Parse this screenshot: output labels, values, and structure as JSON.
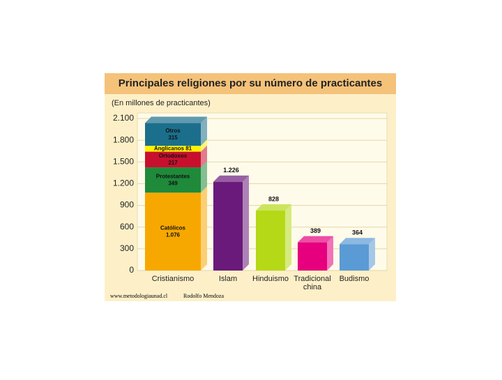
{
  "chart_data": {
    "type": "stacked-bar",
    "title": "Principales religiones por su número de practicantes",
    "subtitle": "(En millones de practicantes)",
    "categories": [
      "Cristianismo",
      "Islam",
      "Hinduismo",
      "Tradicional china",
      "Budismo"
    ],
    "segments": [
      {
        "name": "Católicos",
        "value": 1076,
        "value_label": "1.076",
        "color": "#f7a800"
      },
      {
        "name": "Protestantes",
        "value": 349,
        "color": "#1e8a3a"
      },
      {
        "name": "Ortodoxos",
        "value": 217,
        "color": "#c8102e"
      },
      {
        "name": "Anglicanos",
        "value": 81,
        "color": "#fff200"
      },
      {
        "name": "Otros",
        "value": 315,
        "color": "#1b6f8c"
      }
    ],
    "values": [
      null,
      1226,
      828,
      389,
      364
    ],
    "value_labels": [
      null,
      "1.226",
      "828",
      "389",
      "364"
    ],
    "colors": [
      null,
      "#6a1a7a",
      "#b5d916",
      "#e6007e",
      "#5b9bd5"
    ],
    "ylim": [
      0,
      2100
    ],
    "yticks": [
      0,
      300,
      600,
      900,
      {
        "value": 1200,
        "label": "1.200"
      },
      {
        "value": 1500,
        "label": "1.500"
      },
      {
        "value": 1800,
        "label": "1.800"
      },
      {
        "value": 2100,
        "label": "2.100"
      }
    ],
    "grid": true,
    "footer": [
      "www.metodologiaunad.cl",
      "Rodolfo Mendoza"
    ]
  }
}
